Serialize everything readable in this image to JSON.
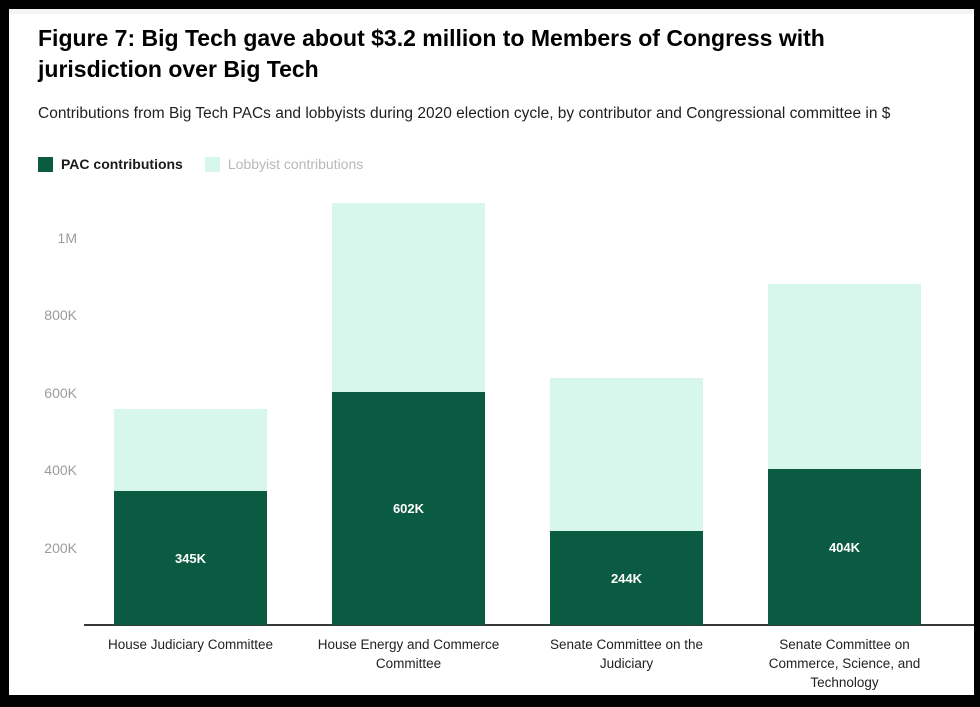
{
  "title": "Figure 7: Big Tech gave about $3.2 million to Members of Congress with jurisdiction over Big Tech",
  "subtitle": "Contributions from Big Tech PACs and lobbyists during 2020 election cycle, by contributor and Congressional committee in $",
  "colors": {
    "pac_green": "#0b5b42",
    "lobbyist_mint": "#d8f7ec",
    "axis_line": "#383838",
    "ytick_text": "#9c9c9c",
    "xlabel_text": "#222222",
    "lobbyist_legend_text": "#b9b9b9",
    "pac_legend_text": "#1a1a1a"
  },
  "legend": {
    "items": [
      {
        "label": "PAC contributions",
        "swatch_color": "#0b5b42",
        "text_color": "#1a1a1a",
        "bold": true
      },
      {
        "label": "Lobbyist contributions",
        "swatch_color": "#d8f7ec",
        "text_color": "#b9b9b9",
        "bold": false
      }
    ]
  },
  "chart_data": {
    "type": "bar",
    "stacked": true,
    "title": "Figure 7: Big Tech gave about $3.2 million to Members of Congress with jurisdiction over Big Tech",
    "subtitle": "Contributions from Big Tech PACs and lobbyists during 2020 election cycle, by contributor and Congressional committee in $",
    "unit": "thousands of USD",
    "categories": [
      "House Judiciary Committee",
      "House Energy and Commerce Committee",
      "Senate Committee on the Judiciary",
      "Senate Committee on Commerce, Science, and Technology"
    ],
    "category_lines": [
      [
        "House Judiciary Committee"
      ],
      [
        "House Energy and Commerce",
        "Committee"
      ],
      [
        "Senate Committee on the",
        "Judiciary"
      ],
      [
        "Senate Committee on",
        "Commerce, Science, and",
        "Technology"
      ]
    ],
    "series": [
      {
        "name": "PAC contributions",
        "color": "#0b5b42",
        "values": [
          345,
          602,
          244,
          404
        ],
        "labels": [
          "345K",
          "602K",
          "244K",
          "404K"
        ]
      },
      {
        "name": "Lobbyist contributions",
        "color": "#d8f7ec",
        "values": [
          211,
          489,
          395,
          478
        ],
        "labels": [
          "",
          "",
          "",
          ""
        ],
        "note": "values estimated from bar heights; totals per bar approx 556K, 1091K, 639K, 882K"
      }
    ],
    "yticks": [
      {
        "label": "1M",
        "value": 1000
      },
      {
        "label": "800K",
        "value": 800
      },
      {
        "label": "600K",
        "value": 600
      },
      {
        "label": "400K",
        "value": 400
      },
      {
        "label": "200K",
        "value": 200
      }
    ],
    "ylim": [
      0,
      1112
    ],
    "grid": false,
    "legend_position": "top-left"
  }
}
